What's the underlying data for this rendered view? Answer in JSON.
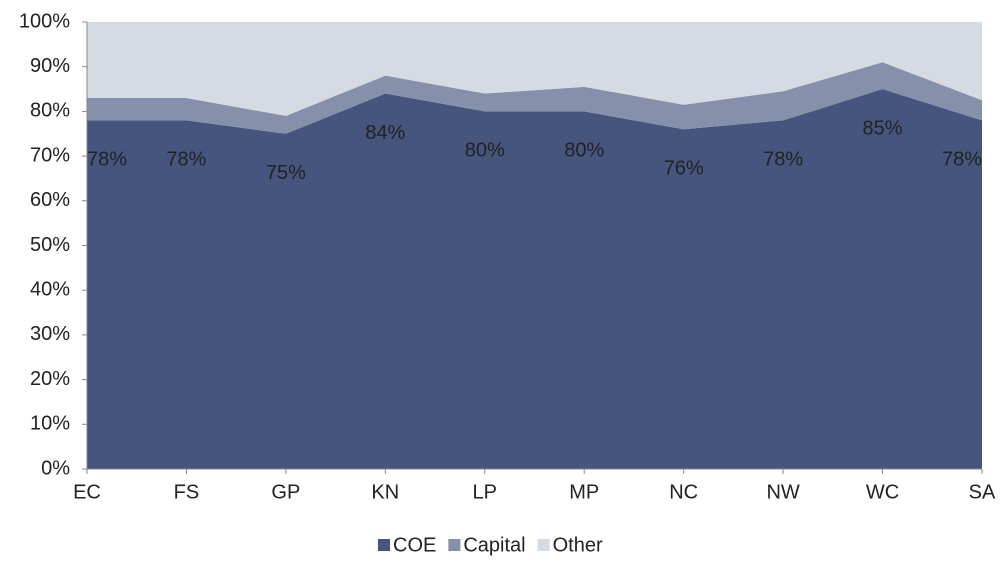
{
  "chart_data": {
    "type": "stacked_area",
    "categories": [
      "EC",
      "FS",
      "GP",
      "KN",
      "LP",
      "MP",
      "NC",
      "NW",
      "WC",
      "SA"
    ],
    "series": [
      {
        "name": "COE",
        "color": "#46557d",
        "values": [
          78,
          78,
          75,
          84,
          80,
          80,
          76,
          78,
          85,
          78
        ],
        "value_labels": [
          "78%",
          "78%",
          "75%",
          "84%",
          "80%",
          "80%",
          "76%",
          "78%",
          "85%",
          "78%"
        ]
      },
      {
        "name": "Capital",
        "color": "#8590ab",
        "values": [
          5,
          5,
          4,
          4,
          4,
          5.5,
          5.5,
          6.5,
          6,
          4.5
        ]
      },
      {
        "name": "Other",
        "color": "#d6dae3",
        "values": [
          17,
          17,
          21,
          12,
          16,
          14.5,
          18.5,
          15.5,
          9,
          17.5
        ]
      }
    ],
    "ylim": [
      0,
      100
    ],
    "yticks": [
      {
        "value": 0,
        "label": "0%"
      },
      {
        "value": 10,
        "label": "10%"
      },
      {
        "value": 20,
        "label": "20%"
      },
      {
        "value": 30,
        "label": "30%"
      },
      {
        "value": 40,
        "label": "40%"
      },
      {
        "value": 50,
        "label": "50%"
      },
      {
        "value": 60,
        "label": "60%"
      },
      {
        "value": 70,
        "label": "70%"
      },
      {
        "value": 80,
        "label": "80%"
      },
      {
        "value": 90,
        "label": "90%"
      },
      {
        "value": 100,
        "label": "100%"
      }
    ],
    "legend": "bottom"
  }
}
